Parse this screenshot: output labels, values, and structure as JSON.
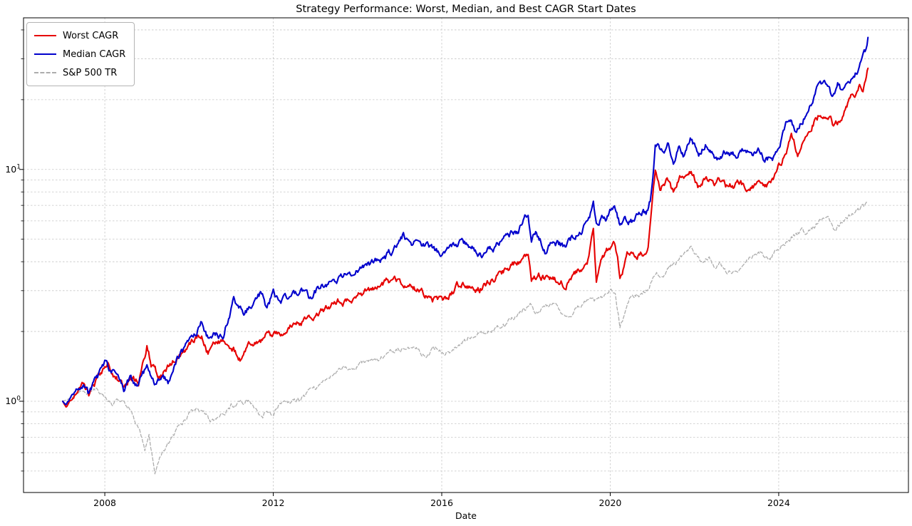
{
  "chart_data": {
    "type": "line",
    "title": "Strategy Performance: Worst, Median, and Best CAGR Start Dates",
    "xlabel": "Date",
    "ylabel": "",
    "yscale": "log",
    "grid": true,
    "legend_position": "upper left",
    "xlim": [
      2006.07,
      2027.08
    ],
    "ylim": [
      0.404,
      45.1
    ],
    "x_ticks": [
      {
        "label": "2008",
        "value": 2008
      },
      {
        "label": "2012",
        "value": 2012
      },
      {
        "label": "2016",
        "value": 2016
      },
      {
        "label": "2020",
        "value": 2020
      },
      {
        "label": "2024",
        "value": 2024
      }
    ],
    "y_ticks": [
      {
        "label": "10^0",
        "base": "10",
        "exp": "0",
        "value": 1
      },
      {
        "label": "10^1",
        "base": "10",
        "exp": "1",
        "value": 10
      }
    ],
    "y_minor_gridlines": [
      0.5,
      0.6,
      0.7,
      0.8,
      0.9,
      2,
      3,
      4,
      5,
      6,
      7,
      8,
      9,
      20,
      30,
      40
    ],
    "series": [
      {
        "name": "S&P 500 TR",
        "color": "#adadad",
        "style": "dashed",
        "points": [
          [
            2007.0,
            1.0
          ],
          [
            2007.2,
            1.04
          ],
          [
            2007.4,
            1.08
          ],
          [
            2007.55,
            1.05
          ],
          [
            2007.8,
            1.12
          ],
          [
            2008.0,
            1.06
          ],
          [
            2008.2,
            0.97
          ],
          [
            2008.4,
            1.01
          ],
          [
            2008.6,
            0.93
          ],
          [
            2008.75,
            0.8
          ],
          [
            2008.9,
            0.68
          ],
          [
            2008.95,
            0.62
          ],
          [
            2009.05,
            0.7
          ],
          [
            2009.19,
            0.5
          ],
          [
            2009.3,
            0.58
          ],
          [
            2009.45,
            0.65
          ],
          [
            2009.6,
            0.7
          ],
          [
            2009.8,
            0.77
          ],
          [
            2010.0,
            0.89
          ],
          [
            2010.35,
            0.93
          ],
          [
            2010.5,
            0.81
          ],
          [
            2010.7,
            0.85
          ],
          [
            2011.0,
            0.95
          ],
          [
            2011.35,
            1.0
          ],
          [
            2011.6,
            0.95
          ],
          [
            2011.75,
            0.86
          ],
          [
            2011.85,
            0.92
          ],
          [
            2011.95,
            0.87
          ],
          [
            2012.2,
            0.99
          ],
          [
            2012.4,
            0.95
          ],
          [
            2012.7,
            1.03
          ],
          [
            2012.85,
            1.1
          ],
          [
            2013.0,
            1.15
          ],
          [
            2013.6,
            1.36
          ],
          [
            2014.0,
            1.45
          ],
          [
            2014.5,
            1.54
          ],
          [
            2015.0,
            1.67
          ],
          [
            2015.3,
            1.71
          ],
          [
            2015.65,
            1.58
          ],
          [
            2015.85,
            1.68
          ],
          [
            2016.05,
            1.6
          ],
          [
            2016.4,
            1.75
          ],
          [
            2016.7,
            1.91
          ],
          [
            2017.0,
            2.0
          ],
          [
            2017.5,
            2.15
          ],
          [
            2017.9,
            2.45
          ],
          [
            2018.1,
            2.6
          ],
          [
            2018.18,
            2.4
          ],
          [
            2018.45,
            2.52
          ],
          [
            2018.74,
            2.65
          ],
          [
            2018.97,
            2.25
          ],
          [
            2019.25,
            2.58
          ],
          [
            2019.5,
            2.72
          ],
          [
            2019.62,
            2.62
          ],
          [
            2019.9,
            2.95
          ],
          [
            2020.12,
            3.06
          ],
          [
            2020.23,
            2.15
          ],
          [
            2020.45,
            2.7
          ],
          [
            2020.68,
            2.9
          ],
          [
            2020.85,
            3.05
          ],
          [
            2021.1,
            3.45
          ],
          [
            2021.4,
            3.8
          ],
          [
            2021.65,
            4.1
          ],
          [
            2021.9,
            4.5
          ],
          [
            2022.05,
            4.3
          ],
          [
            2022.2,
            4.05
          ],
          [
            2022.35,
            4.28
          ],
          [
            2022.5,
            3.8
          ],
          [
            2022.62,
            4.0
          ],
          [
            2022.78,
            3.5
          ],
          [
            2023.05,
            3.8
          ],
          [
            2023.3,
            4.12
          ],
          [
            2023.58,
            4.42
          ],
          [
            2023.8,
            4.1
          ],
          [
            2024.05,
            4.65
          ],
          [
            2024.3,
            5.1
          ],
          [
            2024.55,
            5.45
          ],
          [
            2024.63,
            5.1
          ],
          [
            2024.95,
            5.95
          ],
          [
            2025.1,
            6.15
          ],
          [
            2025.17,
            6.3
          ],
          [
            2025.3,
            5.5
          ],
          [
            2025.55,
            6.15
          ],
          [
            2025.8,
            6.55
          ],
          [
            2026.0,
            6.9
          ],
          [
            2026.12,
            7.0
          ]
        ]
      },
      {
        "name": "Worst CAGR",
        "color": "#e60000",
        "style": "solid",
        "points": [
          [
            2007.0,
            1.0
          ],
          [
            2007.08,
            0.95
          ],
          [
            2007.3,
            1.07
          ],
          [
            2007.5,
            1.19
          ],
          [
            2007.62,
            1.04
          ],
          [
            2007.75,
            1.16
          ],
          [
            2008.0,
            1.45
          ],
          [
            2008.07,
            1.51
          ],
          [
            2008.2,
            1.35
          ],
          [
            2008.45,
            1.15
          ],
          [
            2008.6,
            1.28
          ],
          [
            2008.8,
            1.2
          ],
          [
            2008.95,
            1.5
          ],
          [
            2009.0,
            1.7
          ],
          [
            2009.1,
            1.45
          ],
          [
            2009.25,
            1.28
          ],
          [
            2009.45,
            1.35
          ],
          [
            2009.65,
            1.48
          ],
          [
            2009.85,
            1.6
          ],
          [
            2010.1,
            1.75
          ],
          [
            2010.3,
            1.95
          ],
          [
            2010.45,
            1.62
          ],
          [
            2010.8,
            1.84
          ],
          [
            2011.0,
            1.75
          ],
          [
            2011.23,
            1.53
          ],
          [
            2011.6,
            1.84
          ],
          [
            2011.95,
            1.93
          ],
          [
            2012.5,
            2.2
          ],
          [
            2013.07,
            2.36
          ],
          [
            2013.63,
            2.7
          ],
          [
            2014.0,
            2.85
          ],
          [
            2014.3,
            2.95
          ],
          [
            2014.9,
            3.33
          ],
          [
            2015.3,
            3.1
          ],
          [
            2015.7,
            2.85
          ],
          [
            2016.0,
            2.62
          ],
          [
            2016.5,
            3.28
          ],
          [
            2016.9,
            3.1
          ],
          [
            2017.3,
            3.45
          ],
          [
            2017.7,
            3.9
          ],
          [
            2018.05,
            4.3
          ],
          [
            2018.13,
            3.25
          ],
          [
            2018.3,
            3.45
          ],
          [
            2018.6,
            3.4
          ],
          [
            2018.95,
            3.24
          ],
          [
            2019.2,
            3.6
          ],
          [
            2019.45,
            3.9
          ],
          [
            2019.6,
            5.8
          ],
          [
            2019.67,
            3.4
          ],
          [
            2019.8,
            4.2
          ],
          [
            2019.95,
            4.55
          ],
          [
            2020.1,
            4.8
          ],
          [
            2020.23,
            3.45
          ],
          [
            2020.4,
            4.3
          ],
          [
            2020.6,
            4.15
          ],
          [
            2020.8,
            4.35
          ],
          [
            2020.9,
            4.8
          ],
          [
            2021.07,
            9.4
          ],
          [
            2021.2,
            8.1
          ],
          [
            2021.35,
            9.2
          ],
          [
            2021.5,
            8.0
          ],
          [
            2021.65,
            9.3
          ],
          [
            2021.9,
            9.9
          ],
          [
            2022.1,
            8.5
          ],
          [
            2022.26,
            9.2
          ],
          [
            2022.45,
            8.6
          ],
          [
            2022.6,
            8.9
          ],
          [
            2022.8,
            8.2
          ],
          [
            2023.0,
            8.6
          ],
          [
            2023.2,
            8.4
          ],
          [
            2023.45,
            8.7
          ],
          [
            2023.67,
            8.4
          ],
          [
            2023.85,
            8.8
          ],
          [
            2024.1,
            11.0
          ],
          [
            2024.3,
            13.7
          ],
          [
            2024.45,
            12.0
          ],
          [
            2024.63,
            14.1
          ],
          [
            2024.8,
            16.2
          ],
          [
            2024.95,
            17.4
          ],
          [
            2025.17,
            17.6
          ],
          [
            2025.3,
            15.6
          ],
          [
            2025.45,
            16.1
          ],
          [
            2025.6,
            18.4
          ],
          [
            2025.75,
            20.5
          ],
          [
            2025.92,
            22.8
          ],
          [
            2026.0,
            21.8
          ],
          [
            2026.12,
            27.5
          ]
        ]
      },
      {
        "name": "Median CAGR",
        "color": "#0000cc",
        "style": "solid",
        "points": [
          [
            2007.0,
            1.0
          ],
          [
            2007.08,
            0.96
          ],
          [
            2007.3,
            1.08
          ],
          [
            2007.5,
            1.2
          ],
          [
            2007.62,
            1.05
          ],
          [
            2007.75,
            1.18
          ],
          [
            2008.0,
            1.4
          ],
          [
            2008.1,
            1.33
          ],
          [
            2008.25,
            1.4
          ],
          [
            2008.45,
            1.12
          ],
          [
            2008.6,
            1.25
          ],
          [
            2008.8,
            1.15
          ],
          [
            2009.0,
            1.4
          ],
          [
            2009.2,
            1.18
          ],
          [
            2009.35,
            1.26
          ],
          [
            2009.5,
            1.21
          ],
          [
            2009.7,
            1.52
          ],
          [
            2009.9,
            1.68
          ],
          [
            2010.1,
            1.85
          ],
          [
            2010.3,
            2.27
          ],
          [
            2010.45,
            1.88
          ],
          [
            2010.6,
            2.02
          ],
          [
            2010.8,
            1.95
          ],
          [
            2011.06,
            2.79
          ],
          [
            2011.3,
            2.36
          ],
          [
            2011.7,
            2.91
          ],
          [
            2011.85,
            2.51
          ],
          [
            2012.0,
            2.96
          ],
          [
            2012.16,
            2.57
          ],
          [
            2012.4,
            2.85
          ],
          [
            2012.67,
            3.0
          ],
          [
            2012.84,
            2.75
          ],
          [
            2013.1,
            3.1
          ],
          [
            2013.4,
            3.25
          ],
          [
            2013.85,
            3.52
          ],
          [
            2014.1,
            3.75
          ],
          [
            2014.5,
            4.0
          ],
          [
            2014.8,
            4.35
          ],
          [
            2015.07,
            5.2
          ],
          [
            2015.3,
            4.9
          ],
          [
            2015.6,
            4.6
          ],
          [
            2015.95,
            4.28
          ],
          [
            2016.15,
            4.65
          ],
          [
            2016.5,
            4.95
          ],
          [
            2016.7,
            4.6
          ],
          [
            2016.95,
            4.38
          ],
          [
            2017.2,
            4.6
          ],
          [
            2017.5,
            4.9
          ],
          [
            2017.8,
            5.4
          ],
          [
            2018.05,
            6.4
          ],
          [
            2018.13,
            4.8
          ],
          [
            2018.25,
            5.4
          ],
          [
            2018.45,
            4.55
          ],
          [
            2018.6,
            4.8
          ],
          [
            2018.8,
            4.75
          ],
          [
            2018.95,
            4.55
          ],
          [
            2019.15,
            5.15
          ],
          [
            2019.35,
            5.6
          ],
          [
            2019.55,
            6.6
          ],
          [
            2019.6,
            7.2
          ],
          [
            2019.67,
            5.6
          ],
          [
            2019.8,
            6.3
          ],
          [
            2019.95,
            6.4
          ],
          [
            2020.1,
            6.9
          ],
          [
            2020.23,
            5.7
          ],
          [
            2020.35,
            6.3
          ],
          [
            2020.55,
            6.1
          ],
          [
            2020.7,
            6.5
          ],
          [
            2020.85,
            6.55
          ],
          [
            2020.95,
            7.5
          ],
          [
            2021.07,
            12.8
          ],
          [
            2021.15,
            13.2
          ],
          [
            2021.28,
            12.0
          ],
          [
            2021.38,
            13.0
          ],
          [
            2021.5,
            11.1
          ],
          [
            2021.62,
            12.6
          ],
          [
            2021.75,
            11.5
          ],
          [
            2021.9,
            13.5
          ],
          [
            2022.1,
            11.5
          ],
          [
            2022.26,
            12.9
          ],
          [
            2022.45,
            11.8
          ],
          [
            2022.6,
            11.0
          ],
          [
            2022.75,
            12.0
          ],
          [
            2022.95,
            11.4
          ],
          [
            2023.15,
            12.2
          ],
          [
            2023.35,
            11.5
          ],
          [
            2023.55,
            12.0
          ],
          [
            2023.67,
            11.0
          ],
          [
            2023.85,
            11.3
          ],
          [
            2024.05,
            13.5
          ],
          [
            2024.25,
            16.8
          ],
          [
            2024.38,
            15.0
          ],
          [
            2024.55,
            16.5
          ],
          [
            2024.75,
            18.7
          ],
          [
            2024.92,
            22.2
          ],
          [
            2025.05,
            23.0
          ],
          [
            2025.14,
            23.5
          ],
          [
            2025.25,
            20.7
          ],
          [
            2025.4,
            23.9
          ],
          [
            2025.52,
            21.0
          ],
          [
            2025.65,
            22.5
          ],
          [
            2025.8,
            25.1
          ],
          [
            2025.97,
            29.5
          ],
          [
            2026.05,
            31.0
          ],
          [
            2026.12,
            36.4
          ]
        ]
      }
    ],
    "legend_order": [
      1,
      2,
      0
    ]
  }
}
